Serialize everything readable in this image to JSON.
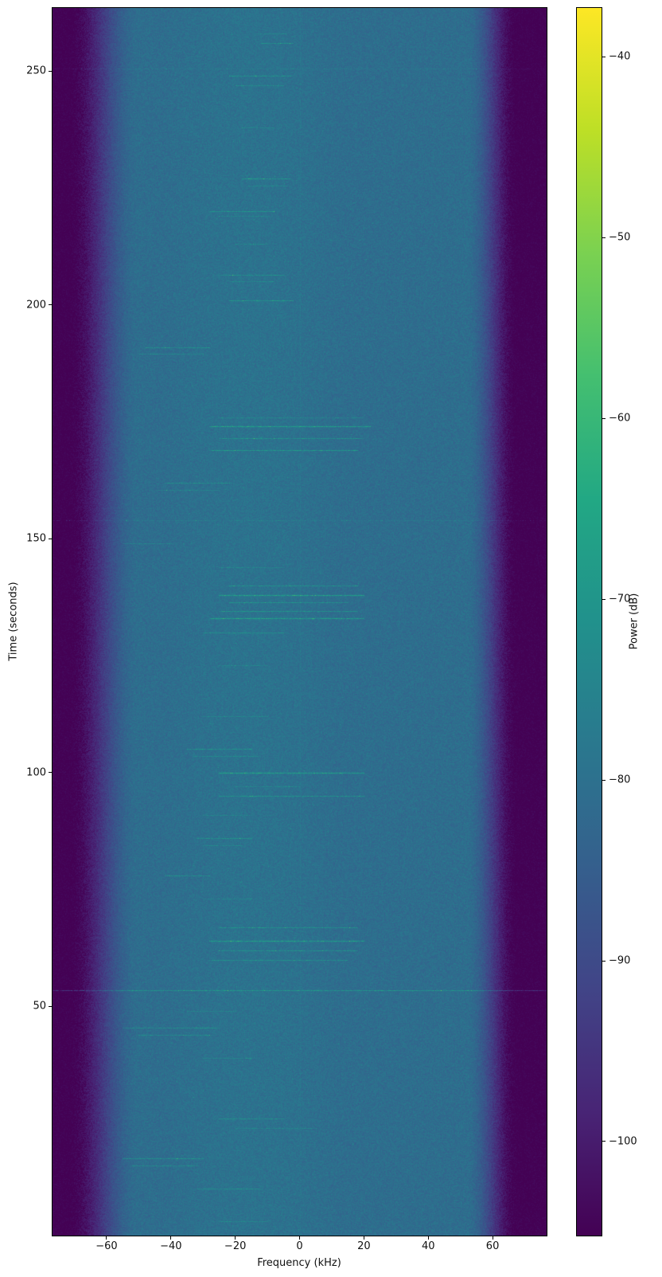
{
  "chart_data": {
    "type": "heatmap",
    "variant": "spectrogram_waterfall",
    "xlabel": "Frequency (kHz)",
    "ylabel": "Time (seconds)",
    "x_range": [
      -76.8,
      76.8
    ],
    "y_range": [
      1,
      263.5
    ],
    "x_ticks": [
      -60,
      -40,
      -20,
      0,
      20,
      40,
      60
    ],
    "y_ticks": [
      50,
      100,
      150,
      200,
      250
    ],
    "grid": false,
    "legend": "none",
    "colorbar": {
      "label": "Power (dB)",
      "ticks": [
        -40,
        -50,
        -60,
        -70,
        -80,
        -90,
        -100
      ],
      "min": -105.2,
      "max": -37.3
    },
    "colormap": {
      "name": "viridis",
      "stops": [
        [
          0.0,
          "#440154"
        ],
        [
          0.1,
          "#482475"
        ],
        [
          0.2,
          "#414487"
        ],
        [
          0.3,
          "#355f8d"
        ],
        [
          0.4,
          "#2a788e"
        ],
        [
          0.5,
          "#21918c"
        ],
        [
          0.6,
          "#22a884"
        ],
        [
          0.7,
          "#44bf70"
        ],
        [
          0.8,
          "#7ad151"
        ],
        [
          0.9,
          "#bddf26"
        ],
        [
          1.0,
          "#fde725"
        ]
      ]
    },
    "background": {
      "interior_db": -80.8,
      "floor_db": -106,
      "noise_db": 6,
      "left_edge": {
        "blue_kHz": -50,
        "dark_kHz": -72
      },
      "right_edge": {
        "blue_kHz": 52,
        "dark_kHz": 68
      },
      "center_bump": {
        "f0": -42,
        "f1": 12,
        "db": 1.3
      },
      "speckle": {
        "f0": -40,
        "f1": 25,
        "prob": 0.0025,
        "max_db": 9
      }
    },
    "vertical_line": {
      "f_kHz": 0,
      "db": 1.6
    },
    "full_width_lines": [
      {
        "t": 53.5,
        "db": 10.5
      },
      {
        "t": 154,
        "db": 2.5
      },
      {
        "t": 250.5,
        "db": 2
      }
    ],
    "features_format": "[time_s, f_start_kHz, f_end_kHz, power_boost_db]",
    "features": [
      [
        258,
        -14,
        -4,
        5
      ],
      [
        256,
        -12,
        -2,
        8
      ],
      [
        249,
        -22,
        -2,
        8.5
      ],
      [
        247,
        -20,
        -5,
        6
      ],
      [
        238,
        -18,
        -8,
        5
      ],
      [
        227,
        -18,
        -3,
        8.5
      ],
      [
        225.5,
        -16,
        -4,
        6
      ],
      [
        220,
        -28,
        -8,
        8.5
      ],
      [
        219,
        -25,
        -10,
        5
      ],
      [
        213,
        -20,
        -10,
        5
      ],
      [
        206.5,
        -25,
        -5,
        8
      ],
      [
        205,
        -22,
        -8,
        6
      ],
      [
        201,
        -22,
        -2,
        10
      ],
      [
        191,
        -48,
        -28,
        8
      ],
      [
        189.5,
        -50,
        -30,
        6
      ],
      [
        176,
        -25,
        20,
        5
      ],
      [
        174,
        -28,
        22,
        13
      ],
      [
        171.5,
        -25,
        20,
        8.5
      ],
      [
        169,
        -28,
        18,
        11
      ],
      [
        162,
        -42,
        -22,
        8
      ],
      [
        160.5,
        -45,
        -25,
        5
      ],
      [
        149,
        -55,
        -40,
        5
      ],
      [
        144,
        -25,
        -5,
        5
      ],
      [
        140,
        -22,
        18,
        8.5
      ],
      [
        138,
        -25,
        20,
        13
      ],
      [
        136.5,
        -22,
        15,
        8.5
      ],
      [
        134.5,
        -25,
        18,
        9
      ],
      [
        133,
        -28,
        20,
        13
      ],
      [
        130,
        -30,
        -5,
        8
      ],
      [
        123,
        -25,
        -10,
        5
      ],
      [
        112,
        -30,
        -10,
        5
      ],
      [
        105,
        -35,
        -15,
        8.5
      ],
      [
        103.5,
        -33,
        -13,
        6
      ],
      [
        100,
        -25,
        20,
        13
      ],
      [
        97,
        -20,
        0,
        5
      ],
      [
        95,
        -25,
        20,
        9
      ],
      [
        91,
        -30,
        -15,
        5
      ],
      [
        86,
        -32,
        -15,
        8
      ],
      [
        84.5,
        -30,
        -18,
        6
      ],
      [
        78,
        -42,
        -28,
        8
      ],
      [
        73,
        -30,
        -15,
        5
      ],
      [
        67,
        -25,
        18,
        8.5
      ],
      [
        64,
        -28,
        20,
        13
      ],
      [
        62,
        -25,
        18,
        8.5
      ],
      [
        60,
        -28,
        15,
        8
      ],
      [
        49,
        -35,
        -20,
        5
      ],
      [
        45.5,
        -55,
        -25,
        9
      ],
      [
        44,
        -50,
        -28,
        7
      ],
      [
        39,
        -30,
        -15,
        5
      ],
      [
        26,
        -25,
        -5,
        8
      ],
      [
        24,
        -20,
        5,
        5
      ],
      [
        17.5,
        -55,
        -30,
        9
      ],
      [
        16,
        -52,
        -32,
        8
      ],
      [
        11,
        -32,
        -12,
        8
      ],
      [
        4,
        -25,
        -10,
        5
      ]
    ]
  }
}
